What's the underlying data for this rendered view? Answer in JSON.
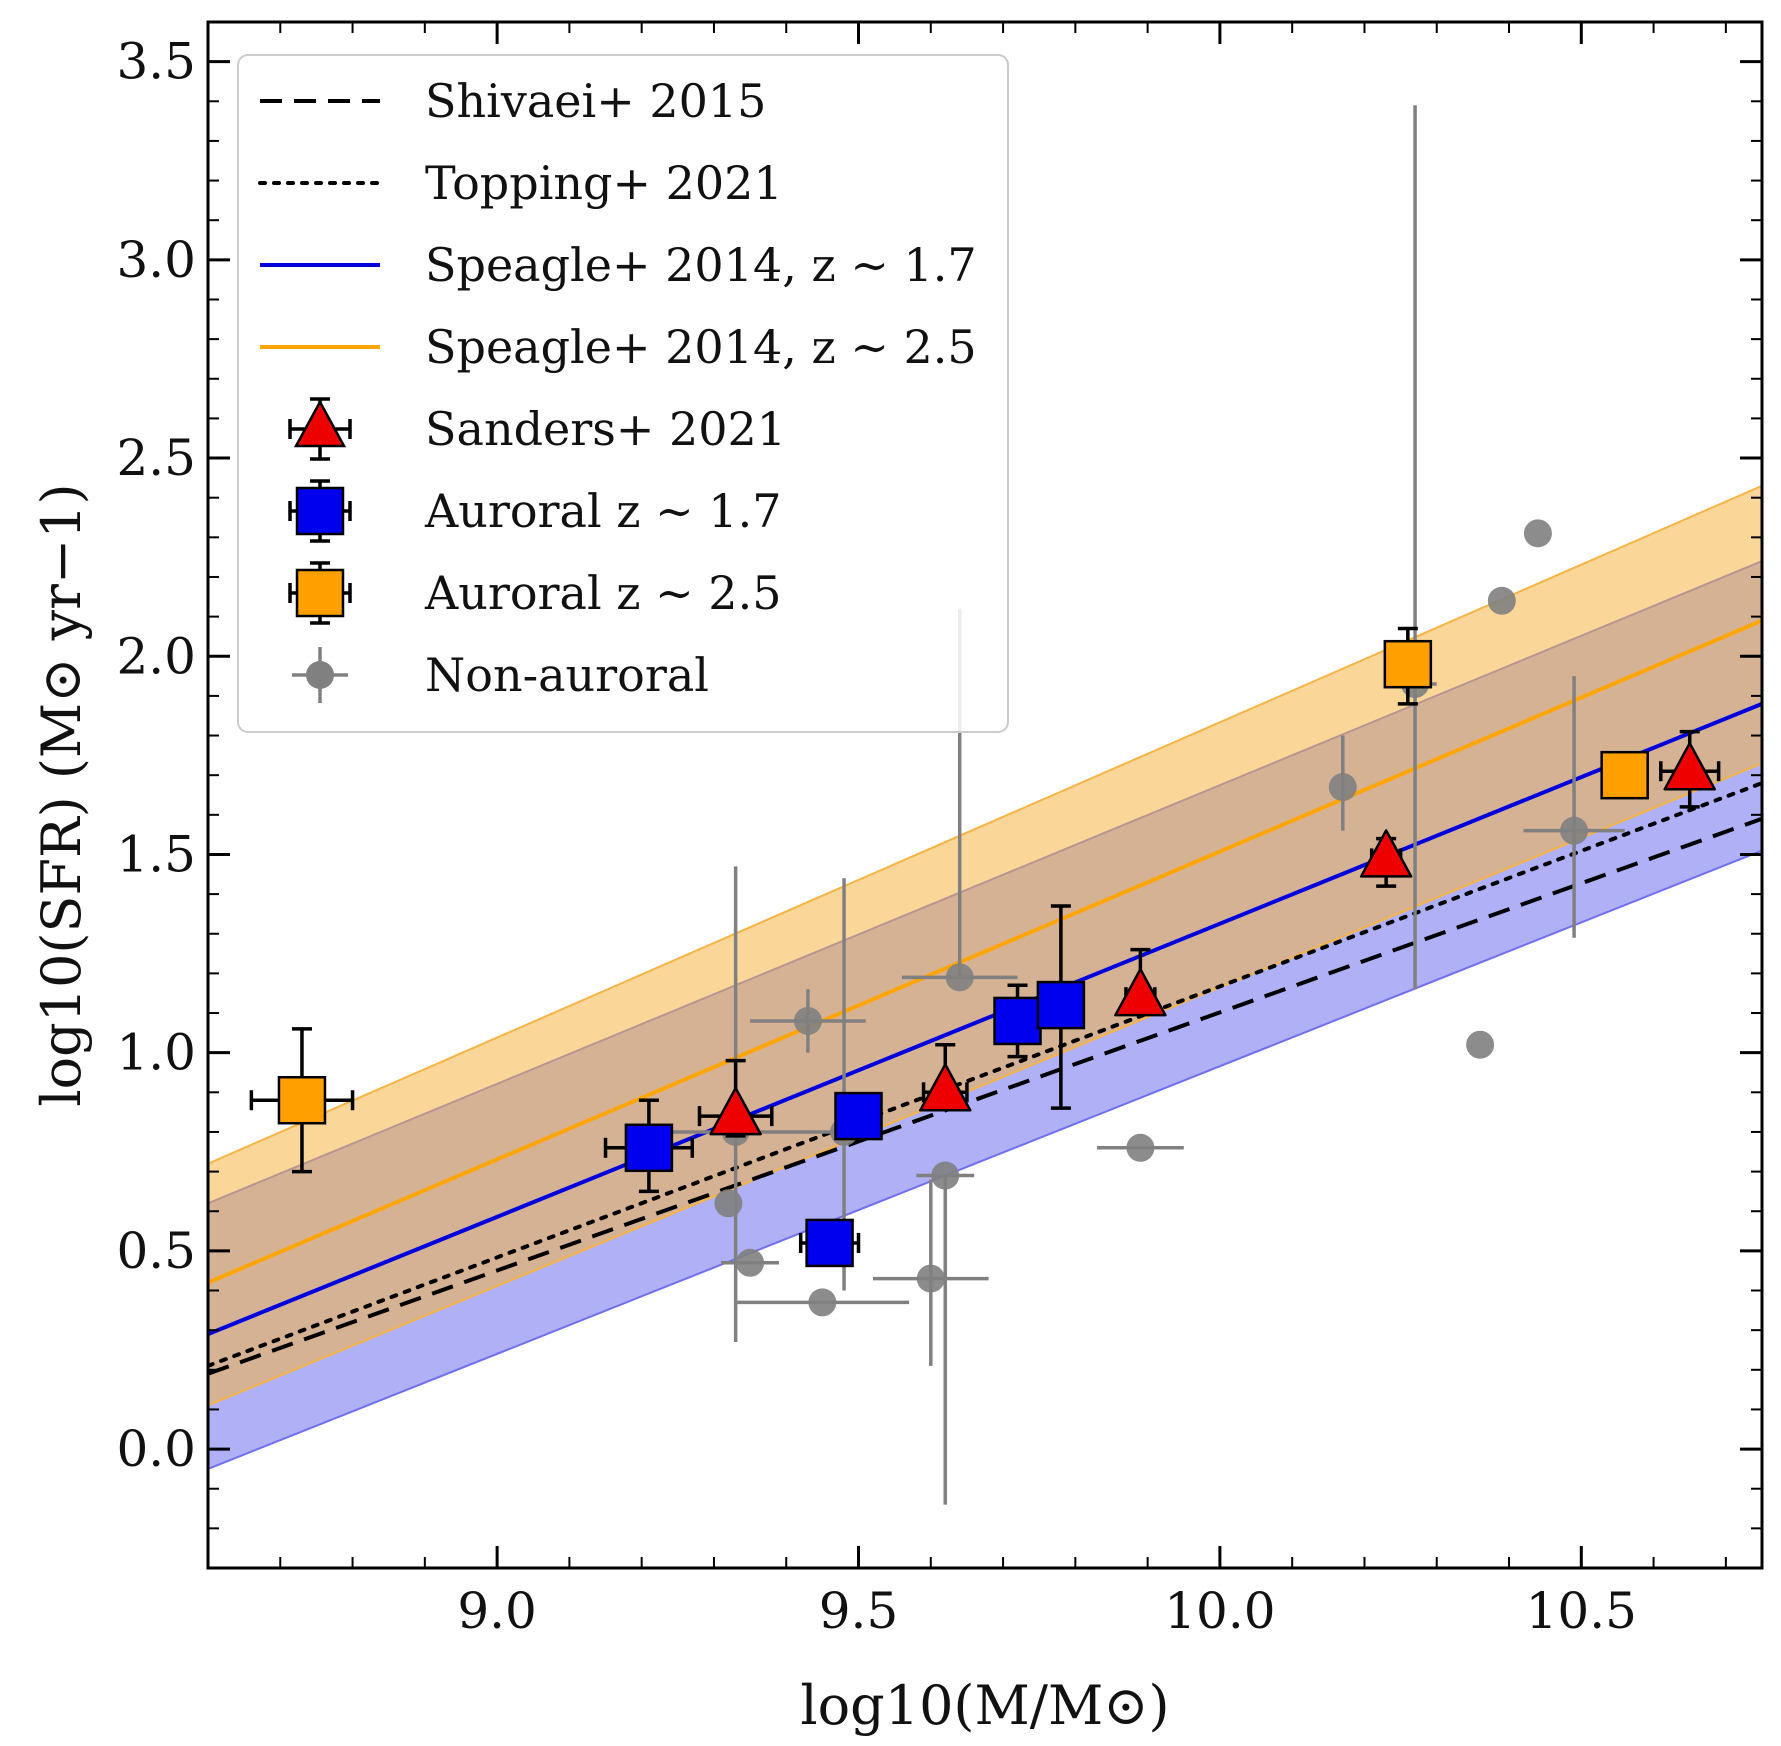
{
  "chart_data": {
    "type": "scatter",
    "xlabel": "log10(M/M⊙)",
    "ylabel": "log10(SFR) (M⊙ yr−1)",
    "xlim": [
      8.6,
      10.75
    ],
    "ylim": [
      -0.3,
      3.6
    ],
    "xticks": [
      9.0,
      9.5,
      10.0,
      10.5
    ],
    "xtick_labels": [
      "9.0",
      "9.5",
      "10.0",
      "10.5"
    ],
    "yticks": [
      0.0,
      0.5,
      1.0,
      1.5,
      2.0,
      2.5,
      3.0,
      3.5
    ],
    "ytick_labels": [
      "0.0",
      "0.5",
      "1.0",
      "1.5",
      "2.0",
      "2.5",
      "3.0",
      "3.5"
    ],
    "legend_position": "top-left",
    "colors": {
      "dashed": "#000000",
      "dotted": "#000000",
      "speagle17": "#0000dd",
      "speagle25": "#ffa500",
      "band17": "#6f6ff0",
      "band25": "#f6b445",
      "sanders": "#ee0000",
      "auroral17": "#0000ee",
      "auroral25": "#ffa000",
      "nonauroral": "#808080"
    },
    "lines": [
      {
        "name": "Shivaei+ 2015",
        "style": "dashed",
        "x": [
          8.6,
          10.75
        ],
        "y": [
          0.19,
          1.59
        ]
      },
      {
        "name": "Topping+ 2021",
        "style": "dotted",
        "x": [
          8.6,
          10.75
        ],
        "y": [
          0.21,
          1.68
        ]
      },
      {
        "name": "Speagle+ 2014, z ~ 1.7",
        "style": "solid",
        "x": [
          8.6,
          10.75
        ],
        "y": [
          0.29,
          1.88
        ]
      },
      {
        "name": "Speagle+ 2014, z ~ 2.5",
        "style": "solid",
        "x": [
          8.6,
          10.75
        ],
        "y": [
          0.42,
          2.09
        ]
      }
    ],
    "bands": [
      {
        "name": "Speagle+ 2014, z ~ 1.7 scatter",
        "x": [
          8.6,
          10.75
        ],
        "y_low": [
          -0.05,
          1.51
        ],
        "y_high": [
          0.62,
          2.24
        ]
      },
      {
        "name": "Speagle+ 2014, z ~ 2.5 scatter",
        "x": [
          8.6,
          10.75
        ],
        "y_low": [
          0.11,
          1.73
        ],
        "y_high": [
          0.72,
          2.43
        ]
      }
    ],
    "series": [
      {
        "name": "Sanders+ 2021",
        "marker": "triangle",
        "points": [
          {
            "x": 9.33,
            "y": 0.84,
            "xerr": 0.05,
            "yerr_lo": 0.05,
            "yerr_hi": 0.14
          },
          {
            "x": 9.62,
            "y": 0.9,
            "xerr": 0.03,
            "yerr_lo": 0.04,
            "yerr_hi": 0.12
          },
          {
            "x": 9.89,
            "y": 1.14,
            "xerr": 0.02,
            "yerr_lo": 0.04,
            "yerr_hi": 0.12
          },
          {
            "x": 10.23,
            "y": 1.49,
            "xerr": 0.02,
            "yerr_lo": 0.07,
            "yerr_hi": 0.05
          },
          {
            "x": 10.65,
            "y": 1.71,
            "xerr": 0.04,
            "yerr_lo": 0.09,
            "yerr_hi": 0.1
          }
        ]
      },
      {
        "name": "Auroral z ~ 1.7",
        "marker": "square",
        "points": [
          {
            "x": 9.21,
            "y": 0.76,
            "xerr": 0.06,
            "yerr_lo": 0.11,
            "yerr_hi": 0.12
          },
          {
            "x": 9.46,
            "y": 0.52,
            "xerr": 0.04,
            "yerr_lo": 0.03,
            "yerr_hi": 0.03
          },
          {
            "x": 9.5,
            "y": 0.84,
            "xerr": 0.03,
            "yerr_lo": 0.05,
            "yerr_hi": 0.05
          },
          {
            "x": 9.72,
            "y": 1.08,
            "xerr": 0.02,
            "yerr_lo": 0.09,
            "yerr_hi": 0.09
          },
          {
            "x": 9.78,
            "y": 1.12,
            "xerr": 0.02,
            "yerr_lo": 0.26,
            "yerr_hi": 0.25
          }
        ]
      },
      {
        "name": "Auroral z ~ 2.5",
        "marker": "square",
        "points": [
          {
            "x": 8.73,
            "y": 0.88,
            "xerr": 0.07,
            "yerr_lo": 0.18,
            "yerr_hi": 0.18
          },
          {
            "x": 10.26,
            "y": 1.98,
            "xerr": 0.03,
            "yerr_lo": 0.1,
            "yerr_hi": 0.09
          },
          {
            "x": 10.56,
            "y": 1.7,
            "xerr": 0.03,
            "yerr_lo": 0.03,
            "yerr_hi": 0.03
          }
        ]
      },
      {
        "name": "Non-auroral",
        "marker": "circle",
        "points": [
          {
            "x": 9.32,
            "y": 0.62,
            "xerr": 0.0,
            "yerr_lo": 0.0,
            "yerr_hi": 0.0
          },
          {
            "x": 9.33,
            "y": 0.8,
            "xerr": 0.12,
            "yerr_lo": 0.53,
            "yerr_hi": 0.67
          },
          {
            "x": 9.35,
            "y": 0.47,
            "xerr": 0.04,
            "yerr_lo": 0.0,
            "yerr_hi": 0.0
          },
          {
            "x": 9.43,
            "y": 1.08,
            "xerr": 0.08,
            "yerr_lo": 0.08,
            "yerr_hi": 0.08
          },
          {
            "x": 9.45,
            "y": 0.37,
            "xerr": 0.12,
            "yerr_lo": 0.0,
            "yerr_hi": 0.0
          },
          {
            "x": 9.48,
            "y": 0.8,
            "xerr": 0.03,
            "yerr_lo": 0.4,
            "yerr_hi": 0.64
          },
          {
            "x": 9.6,
            "y": 0.43,
            "xerr": 0.08,
            "yerr_lo": 0.22,
            "yerr_hi": 0.25
          },
          {
            "x": 9.62,
            "y": 0.69,
            "xerr": 0.04,
            "yerr_lo": 0.83,
            "yerr_hi": 0.0
          },
          {
            "x": 9.64,
            "y": 1.19,
            "xerr": 0.08,
            "yerr_lo": 0.0,
            "yerr_hi": 0.93
          },
          {
            "x": 9.89,
            "y": 0.76,
            "xerr": 0.06,
            "yerr_lo": 0.0,
            "yerr_hi": 0.0
          },
          {
            "x": 10.17,
            "y": 1.67,
            "xerr": 0.0,
            "yerr_lo": 0.11,
            "yerr_hi": 0.13
          },
          {
            "x": 10.27,
            "y": 1.93,
            "xerr": 0.03,
            "yerr_lo": 0.77,
            "yerr_hi": 1.46
          },
          {
            "x": 10.36,
            "y": 1.02,
            "xerr": 0.0,
            "yerr_lo": 0.0,
            "yerr_hi": 0.0
          },
          {
            "x": 10.39,
            "y": 2.14,
            "xerr": 0.0,
            "yerr_lo": 0.0,
            "yerr_hi": 0.0
          },
          {
            "x": 10.44,
            "y": 2.31,
            "xerr": 0.0,
            "yerr_lo": 0.0,
            "yerr_hi": 0.0
          },
          {
            "x": 10.49,
            "y": 1.56,
            "xerr": 0.07,
            "yerr_lo": 0.27,
            "yerr_hi": 0.39
          }
        ]
      }
    ],
    "legend": [
      {
        "label": "Shivaei+ 2015",
        "kind": "dashed"
      },
      {
        "label": "Topping+ 2021",
        "kind": "dotted"
      },
      {
        "label": "Speagle+ 2014, z ∼ 1.7",
        "kind": "line17"
      },
      {
        "label": "Speagle+ 2014, z ∼ 2.5",
        "kind": "line25"
      },
      {
        "label": "Sanders+ 2021",
        "kind": "triangle"
      },
      {
        "label": "Auroral z ∼ 1.7",
        "kind": "square17"
      },
      {
        "label": "Auroral z ∼ 2.5",
        "kind": "square25"
      },
      {
        "label": "Non-auroral",
        "kind": "circle"
      }
    ]
  }
}
